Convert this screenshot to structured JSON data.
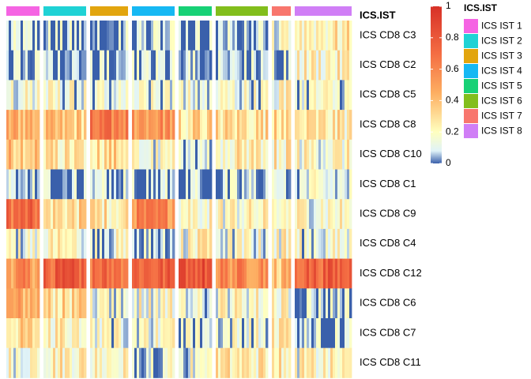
{
  "chart_data": {
    "type": "heatmap",
    "annotation_title": "ICS.IST",
    "groups": [
      {
        "name": "ICS IST 1",
        "color": "#F564E3",
        "columns": 14,
        "profile": [
          0.05,
          0.05,
          0.15,
          0.45,
          0.4,
          0.05,
          0.7,
          0.15,
          0.55,
          0.45,
          0.3,
          0.2
        ]
      },
      {
        "name": "ICS IST 2",
        "color": "#1FD2D5",
        "columns": 18,
        "profile": [
          0.05,
          0.05,
          0.15,
          0.35,
          0.25,
          0.05,
          0.3,
          0.2,
          0.75,
          0.3,
          0.25,
          0.25
        ]
      },
      {
        "name": "ICS IST 3",
        "color": "#E2A50E",
        "columns": 16,
        "profile": [
          0.05,
          0.05,
          0.12,
          0.62,
          0.32,
          0.05,
          0.28,
          0.15,
          0.7,
          0.15,
          0.15,
          0.2
        ]
      },
      {
        "name": "ICS IST 4",
        "color": "#16B8F3",
        "columns": 18,
        "profile": [
          0.05,
          0.05,
          0.12,
          0.55,
          0.15,
          0.05,
          0.58,
          0.1,
          0.75,
          0.2,
          0.18,
          0.15
        ]
      },
      {
        "name": "ICS IST 5",
        "color": "#17D176",
        "columns": 14,
        "profile": [
          0.05,
          0.05,
          0.12,
          0.3,
          0.08,
          0.05,
          0.22,
          0.2,
          0.82,
          0.1,
          0.1,
          0.15
        ]
      },
      {
        "name": "ICS IST 6",
        "color": "#82BE1C",
        "columns": 22,
        "profile": [
          0.05,
          0.05,
          0.15,
          0.3,
          0.25,
          0.05,
          0.2,
          0.15,
          0.58,
          0.2,
          0.15,
          0.25
        ]
      },
      {
        "name": "ICS IST 7",
        "color": "#F8766D",
        "columns": 8,
        "profile": [
          0.15,
          0.12,
          0.22,
          0.35,
          0.25,
          0.12,
          0.25,
          0.2,
          0.4,
          0.2,
          0.2,
          0.25
        ]
      },
      {
        "name": "ICS IST 8",
        "color": "#D07EF6",
        "columns": 24,
        "profile": [
          0.25,
          0.22,
          0.15,
          0.25,
          0.2,
          0.1,
          0.2,
          0.15,
          0.75,
          0.1,
          0.06,
          0.2
        ]
      }
    ],
    "rows": [
      "ICS CD8 C3",
      "ICS CD8 C2",
      "ICS CD8 C5",
      "ICS CD8 C8",
      "ICS CD8 C10",
      "ICS CD8 C1",
      "ICS CD8 C9",
      "ICS CD8 C4",
      "ICS CD8 C12",
      "ICS CD8 C6",
      "ICS CD8 C7",
      "ICS CD8 C11"
    ],
    "value_range": [
      0,
      1
    ],
    "colorbar": {
      "ticks": [
        0,
        0.2,
        0.4,
        0.6,
        0.8,
        1
      ],
      "tick_labels": [
        "0",
        "0.2",
        "0.4",
        "0.6",
        "0.8",
        "1"
      ],
      "stops": [
        {
          "value": 0,
          "color": "#3A60AB"
        },
        {
          "value": 0.08,
          "color": "#E0F3F8"
        },
        {
          "value": 0.2,
          "color": "#FFFFBF"
        },
        {
          "value": 0.45,
          "color": "#FDAE61"
        },
        {
          "value": 0.7,
          "color": "#F46D43"
        },
        {
          "value": 1,
          "color": "#D73027"
        }
      ]
    },
    "legend_placement": "right"
  }
}
